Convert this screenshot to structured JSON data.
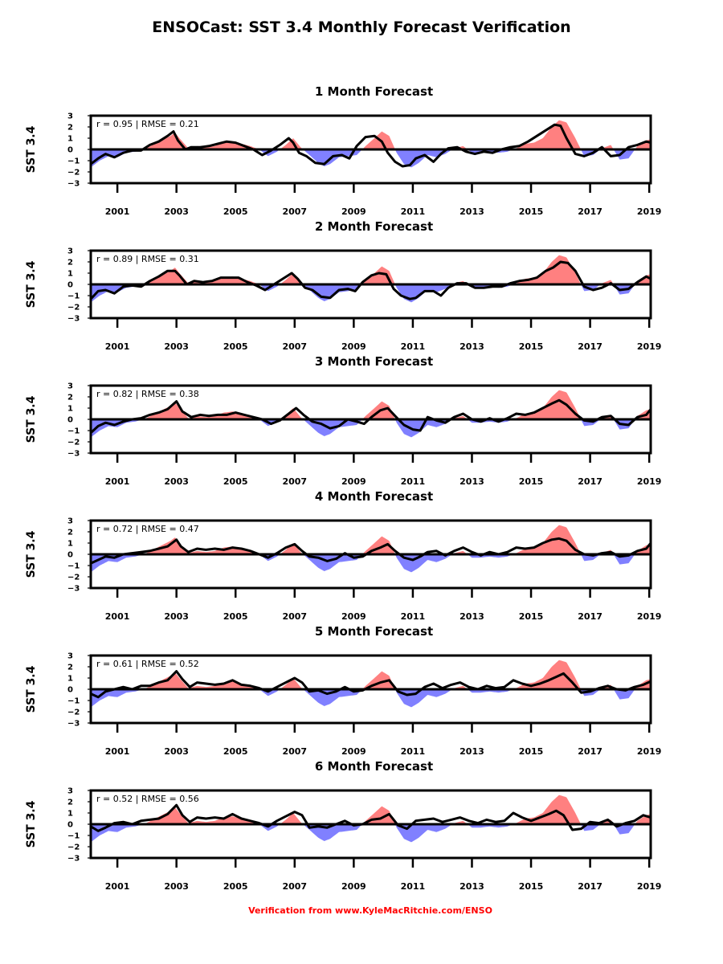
{
  "figure": {
    "title": "ENSOCast: SST 3.4 Monthly Forecast Verification",
    "footer": "Verification from  www.KyleMacRitchie.com/ENSO",
    "colors": {
      "positive_fill": "#ff8080",
      "negative_fill": "#8080ff",
      "forecast_line": "#000000",
      "footer_text": "#ff0000"
    }
  },
  "chart_data": {
    "type": "area",
    "ylabel": "SST 3.4",
    "xlim": [
      2000.1,
      2019.05
    ],
    "ylim": [
      -3,
      3
    ],
    "y_ticks": [
      3,
      2,
      1,
      0,
      -1,
      -2,
      -3
    ],
    "x_ticks": [
      2001,
      2003,
      2005,
      2007,
      2009,
      2011,
      2013,
      2015,
      2017,
      2019
    ],
    "observed_series": {
      "x": [
        2000.1,
        2000.4,
        2000.7,
        2001.0,
        2001.3,
        2001.6,
        2001.9,
        2002.2,
        2002.5,
        2002.8,
        2002.95,
        2003.1,
        2003.4,
        2003.7,
        2004.0,
        2004.3,
        2004.6,
        2004.9,
        2005.2,
        2005.5,
        2005.8,
        2006.1,
        2006.4,
        2006.7,
        2006.95,
        2007.2,
        2007.5,
        2007.8,
        2008.0,
        2008.2,
        2008.5,
        2008.8,
        2009.1,
        2009.4,
        2009.7,
        2009.95,
        2010.2,
        2010.45,
        2010.7,
        2010.95,
        2011.2,
        2011.5,
        2011.8,
        2012.1,
        2012.4,
        2012.7,
        2013.0,
        2013.3,
        2013.6,
        2013.9,
        2014.2,
        2014.5,
        2014.8,
        2015.1,
        2015.4,
        2015.7,
        2015.95,
        2016.2,
        2016.5,
        2016.8,
        2017.1,
        2017.4,
        2017.7,
        2018.0,
        2018.3,
        2018.6,
        2018.9,
        2019.05
      ],
      "y": [
        -1.6,
        -1.0,
        -0.6,
        -0.7,
        -0.3,
        -0.2,
        0.0,
        0.4,
        0.8,
        1.2,
        1.5,
        1.0,
        0.1,
        0.3,
        0.2,
        0.3,
        0.6,
        0.7,
        0.5,
        0.3,
        0.0,
        -0.6,
        -0.2,
        0.4,
        1.0,
        0.2,
        -0.5,
        -1.2,
        -1.5,
        -1.3,
        -0.7,
        -0.6,
        -0.5,
        0.3,
        1.0,
        1.6,
        1.2,
        -0.3,
        -1.3,
        -1.6,
        -1.2,
        -0.5,
        -0.7,
        -0.4,
        0.1,
        0.3,
        -0.3,
        -0.3,
        -0.2,
        -0.3,
        -0.2,
        0.1,
        0.5,
        0.6,
        1.0,
        2.0,
        2.6,
        2.4,
        1.0,
        -0.6,
        -0.5,
        0.1,
        0.4,
        -0.9,
        -0.8,
        0.3,
        0.8,
        0.9
      ]
    },
    "panels": [
      {
        "title": "1 Month Forecast",
        "stats": "r = 0.95 | RMSE = 0.21",
        "forecast": {
          "x": [
            2000.1,
            2000.35,
            2000.6,
            2000.9,
            2001.2,
            2001.5,
            2001.8,
            2002.1,
            2002.4,
            2002.7,
            2002.9,
            2003.05,
            2003.3,
            2003.5,
            2003.8,
            2004.1,
            2004.4,
            2004.7,
            2005.0,
            2005.3,
            2005.6,
            2005.9,
            2006.2,
            2006.5,
            2006.8,
            2006.95,
            2007.15,
            2007.4,
            2007.7,
            2008.0,
            2008.3,
            2008.6,
            2008.85,
            2009.1,
            2009.4,
            2009.7,
            2009.95,
            2010.15,
            2010.4,
            2010.65,
            2010.9,
            2011.1,
            2011.4,
            2011.7,
            2011.95,
            2012.2,
            2012.5,
            2012.8,
            2013.1,
            2013.4,
            2013.7,
            2014.0,
            2014.3,
            2014.6,
            2014.9,
            2015.2,
            2015.5,
            2015.8,
            2016.0,
            2016.2,
            2016.5,
            2016.8,
            2017.1,
            2017.4,
            2017.7,
            2018.0,
            2018.3,
            2018.6,
            2018.9,
            2019.05
          ],
          "y": [
            -1.3,
            -0.8,
            -0.4,
            -0.7,
            -0.3,
            -0.1,
            -0.1,
            0.4,
            0.7,
            1.2,
            1.6,
            0.8,
            0.0,
            0.2,
            0.2,
            0.3,
            0.5,
            0.7,
            0.6,
            0.3,
            0.0,
            -0.5,
            -0.1,
            0.4,
            1.0,
            0.6,
            -0.3,
            -0.6,
            -1.2,
            -1.3,
            -0.6,
            -0.5,
            -0.8,
            0.3,
            1.1,
            1.2,
            0.7,
            -0.3,
            -1.1,
            -1.5,
            -1.4,
            -0.8,
            -0.5,
            -1.1,
            -0.4,
            0.1,
            0.2,
            -0.2,
            -0.4,
            -0.2,
            -0.3,
            0.0,
            0.2,
            0.3,
            0.7,
            1.2,
            1.7,
            2.2,
            2.1,
            1.0,
            -0.4,
            -0.6,
            -0.3,
            0.2,
            -0.6,
            -0.5,
            0.2,
            0.4,
            0.7,
            0.6
          ]
        }
      },
      {
        "title": "2 Month Forecast",
        "stats": "r = 0.89 | RMSE = 0.31",
        "forecast": {
          "x": [
            2000.1,
            2000.35,
            2000.6,
            2000.9,
            2001.2,
            2001.5,
            2001.8,
            2002.1,
            2002.4,
            2002.7,
            2002.95,
            2003.1,
            2003.35,
            2003.6,
            2003.9,
            2004.2,
            2004.5,
            2004.8,
            2005.1,
            2005.4,
            2005.7,
            2006.0,
            2006.3,
            2006.6,
            2006.9,
            2007.1,
            2007.35,
            2007.6,
            2007.9,
            2008.2,
            2008.5,
            2008.8,
            2009.05,
            2009.3,
            2009.6,
            2009.85,
            2010.1,
            2010.35,
            2010.6,
            2010.9,
            2011.1,
            2011.4,
            2011.7,
            2011.95,
            2012.2,
            2012.5,
            2012.8,
            2013.1,
            2013.4,
            2013.7,
            2014.0,
            2014.3,
            2014.6,
            2014.9,
            2015.2,
            2015.5,
            2015.75,
            2016.0,
            2016.25,
            2016.5,
            2016.8,
            2017.1,
            2017.4,
            2017.7,
            2018.0,
            2018.3,
            2018.6,
            2018.9,
            2019.05
          ],
          "y": [
            -1.3,
            -0.6,
            -0.5,
            -0.8,
            -0.2,
            -0.1,
            -0.2,
            0.3,
            0.7,
            1.2,
            1.2,
            0.8,
            0.0,
            0.3,
            0.2,
            0.3,
            0.6,
            0.6,
            0.6,
            0.2,
            -0.1,
            -0.5,
            0.0,
            0.5,
            1.0,
            0.5,
            -0.3,
            -0.5,
            -1.1,
            -1.2,
            -0.5,
            -0.4,
            -0.6,
            0.2,
            0.8,
            1.0,
            0.9,
            -0.4,
            -1.0,
            -1.3,
            -1.2,
            -0.6,
            -0.6,
            -1.0,
            -0.3,
            0.1,
            0.1,
            -0.3,
            -0.3,
            -0.2,
            -0.2,
            0.1,
            0.3,
            0.4,
            0.6,
            1.2,
            1.5,
            2.0,
            1.9,
            1.2,
            -0.2,
            -0.5,
            -0.3,
            0.1,
            -0.5,
            -0.4,
            0.2,
            0.7,
            0.5
          ]
        }
      },
      {
        "title": "3 Month Forecast",
        "stats": "r = 0.82 | RMSE = 0.38",
        "forecast": {
          "x": [
            2000.1,
            2000.35,
            2000.6,
            2000.9,
            2001.2,
            2001.5,
            2001.8,
            2002.1,
            2002.4,
            2002.7,
            2003.0,
            2003.2,
            2003.5,
            2003.8,
            2004.1,
            2004.4,
            2004.7,
            2005.0,
            2005.3,
            2005.6,
            2005.9,
            2006.2,
            2006.5,
            2006.8,
            2007.05,
            2007.3,
            2007.6,
            2007.9,
            2008.2,
            2008.5,
            2008.8,
            2009.1,
            2009.35,
            2009.6,
            2009.9,
            2010.15,
            2010.4,
            2010.7,
            2011.0,
            2011.25,
            2011.5,
            2011.8,
            2012.1,
            2012.4,
            2012.7,
            2013.0,
            2013.3,
            2013.6,
            2013.9,
            2014.2,
            2014.5,
            2014.8,
            2015.1,
            2015.4,
            2015.7,
            2015.95,
            2016.2,
            2016.5,
            2016.8,
            2017.1,
            2017.4,
            2017.7,
            2018.0,
            2018.3,
            2018.6,
            2018.9,
            2019.05
          ],
          "y": [
            -1.2,
            -0.6,
            -0.3,
            -0.5,
            -0.2,
            0.0,
            0.1,
            0.4,
            0.6,
            0.9,
            1.6,
            0.7,
            0.2,
            0.4,
            0.3,
            0.4,
            0.4,
            0.6,
            0.4,
            0.2,
            0.0,
            -0.4,
            -0.1,
            0.5,
            1.0,
            0.4,
            -0.2,
            -0.4,
            -0.8,
            -0.6,
            0.0,
            -0.2,
            -0.4,
            0.2,
            0.8,
            1.0,
            0.3,
            -0.5,
            -0.9,
            -1.0,
            0.2,
            -0.1,
            -0.3,
            0.2,
            0.5,
            0.0,
            -0.2,
            0.1,
            -0.2,
            0.1,
            0.5,
            0.4,
            0.6,
            1.0,
            1.4,
            1.7,
            1.3,
            0.5,
            -0.1,
            -0.2,
            0.2,
            0.3,
            -0.4,
            -0.5,
            0.2,
            0.4,
            0.9
          ]
        }
      },
      {
        "title": "4 Month Forecast",
        "stats": "r = 0.72 | RMSE = 0.47",
        "forecast": {
          "x": [
            2000.1,
            2000.35,
            2000.6,
            2000.9,
            2001.2,
            2001.5,
            2001.8,
            2002.1,
            2002.4,
            2002.7,
            2003.0,
            2003.15,
            2003.4,
            2003.7,
            2004.0,
            2004.3,
            2004.6,
            2004.9,
            2005.2,
            2005.5,
            2005.8,
            2006.1,
            2006.4,
            2006.7,
            2007.0,
            2007.25,
            2007.5,
            2007.8,
            2008.1,
            2008.4,
            2008.7,
            2009.0,
            2009.3,
            2009.6,
            2009.9,
            2010.15,
            2010.4,
            2010.7,
            2011.0,
            2011.25,
            2011.5,
            2011.8,
            2012.1,
            2012.4,
            2012.7,
            2013.0,
            2013.3,
            2013.6,
            2013.9,
            2014.2,
            2014.5,
            2014.8,
            2015.1,
            2015.4,
            2015.7,
            2015.95,
            2016.2,
            2016.5,
            2016.8,
            2017.1,
            2017.4,
            2017.7,
            2018.0,
            2018.3,
            2018.6,
            2018.9,
            2019.05
          ],
          "y": [
            -0.8,
            -0.5,
            -0.2,
            -0.3,
            0.0,
            0.1,
            0.2,
            0.3,
            0.5,
            0.7,
            1.3,
            0.7,
            0.2,
            0.5,
            0.4,
            0.5,
            0.4,
            0.6,
            0.5,
            0.3,
            0.0,
            -0.3,
            0.1,
            0.6,
            0.9,
            0.3,
            -0.2,
            -0.3,
            -0.6,
            -0.4,
            0.1,
            -0.3,
            -0.2,
            0.3,
            0.6,
            0.9,
            0.3,
            -0.3,
            -0.5,
            -0.2,
            0.2,
            0.3,
            -0.1,
            0.3,
            0.6,
            0.2,
            -0.1,
            0.2,
            0.0,
            0.2,
            0.6,
            0.5,
            0.6,
            1.0,
            1.3,
            1.4,
            1.2,
            0.4,
            0.0,
            -0.1,
            0.1,
            0.2,
            -0.2,
            -0.1,
            0.3,
            0.5,
            1.0
          ]
        }
      },
      {
        "title": "5 Month Forecast",
        "stats": "r = 0.61 | RMSE = 0.52",
        "forecast": {
          "x": [
            2000.1,
            2000.35,
            2000.6,
            2000.9,
            2001.2,
            2001.5,
            2001.8,
            2002.1,
            2002.4,
            2002.7,
            2003.0,
            2003.2,
            2003.45,
            2003.7,
            2004.0,
            2004.3,
            2004.6,
            2004.9,
            2005.2,
            2005.5,
            2005.8,
            2006.1,
            2006.4,
            2006.7,
            2007.0,
            2007.25,
            2007.5,
            2007.8,
            2008.1,
            2008.4,
            2008.7,
            2009.0,
            2009.3,
            2009.6,
            2009.9,
            2010.2,
            2010.5,
            2010.8,
            2011.1,
            2011.4,
            2011.7,
            2012.0,
            2012.3,
            2012.6,
            2012.9,
            2013.2,
            2013.5,
            2013.8,
            2014.1,
            2014.4,
            2014.7,
            2015.0,
            2015.3,
            2015.6,
            2015.85,
            2016.1,
            2016.4,
            2016.7,
            2017.0,
            2017.3,
            2017.6,
            2017.9,
            2018.2,
            2018.5,
            2018.8,
            2019.05
          ],
          "y": [
            -0.4,
            -0.7,
            -0.2,
            0.0,
            0.2,
            0.0,
            0.3,
            0.3,
            0.6,
            0.8,
            1.6,
            0.9,
            0.2,
            0.6,
            0.5,
            0.4,
            0.5,
            0.8,
            0.4,
            0.3,
            0.1,
            -0.2,
            0.2,
            0.6,
            1.0,
            0.6,
            -0.2,
            -0.1,
            -0.4,
            -0.2,
            0.2,
            -0.2,
            -0.1,
            0.3,
            0.6,
            0.8,
            -0.2,
            -0.5,
            -0.4,
            0.2,
            0.5,
            0.1,
            0.4,
            0.6,
            0.2,
            0.0,
            0.3,
            0.1,
            0.2,
            0.8,
            0.5,
            0.3,
            0.5,
            0.8,
            1.1,
            1.4,
            0.6,
            -0.3,
            -0.2,
            0.1,
            0.3,
            0.0,
            -0.1,
            0.2,
            0.4,
            0.7
          ]
        }
      },
      {
        "title": "6 Month Forecast",
        "stats": "r = 0.52 | RMSE = 0.56",
        "forecast": {
          "x": [
            2000.1,
            2000.35,
            2000.6,
            2000.9,
            2001.2,
            2001.5,
            2001.8,
            2002.1,
            2002.4,
            2002.7,
            2003.0,
            2003.2,
            2003.45,
            2003.7,
            2004.0,
            2004.3,
            2004.6,
            2004.9,
            2005.2,
            2005.5,
            2005.8,
            2006.1,
            2006.4,
            2006.7,
            2007.0,
            2007.25,
            2007.5,
            2007.8,
            2008.1,
            2008.4,
            2008.7,
            2009.0,
            2009.3,
            2009.6,
            2009.9,
            2010.2,
            2010.5,
            2010.8,
            2011.1,
            2011.4,
            2011.7,
            2012.0,
            2012.3,
            2012.6,
            2012.9,
            2013.2,
            2013.5,
            2013.8,
            2014.1,
            2014.4,
            2014.7,
            2015.0,
            2015.3,
            2015.6,
            2015.85,
            2016.1,
            2016.4,
            2016.7,
            2017.0,
            2017.3,
            2017.6,
            2017.9,
            2018.2,
            2018.5,
            2018.8,
            2019.05
          ],
          "y": [
            -0.2,
            -0.6,
            -0.3,
            0.1,
            0.2,
            0.0,
            0.3,
            0.4,
            0.5,
            0.9,
            1.7,
            0.8,
            0.2,
            0.6,
            0.5,
            0.6,
            0.5,
            0.9,
            0.5,
            0.3,
            0.1,
            -0.2,
            0.3,
            0.7,
            1.1,
            0.8,
            -0.3,
            -0.2,
            -0.3,
            0.0,
            0.3,
            -0.1,
            0.0,
            0.4,
            0.5,
            0.9,
            -0.1,
            -0.4,
            0.3,
            0.4,
            0.5,
            0.2,
            0.4,
            0.6,
            0.3,
            0.1,
            0.4,
            0.2,
            0.3,
            1.0,
            0.6,
            0.3,
            0.6,
            0.9,
            1.2,
            0.8,
            -0.5,
            -0.4,
            0.2,
            0.1,
            0.4,
            -0.2,
            0.1,
            0.3,
            0.8,
            0.6
          ]
        }
      }
    ]
  }
}
